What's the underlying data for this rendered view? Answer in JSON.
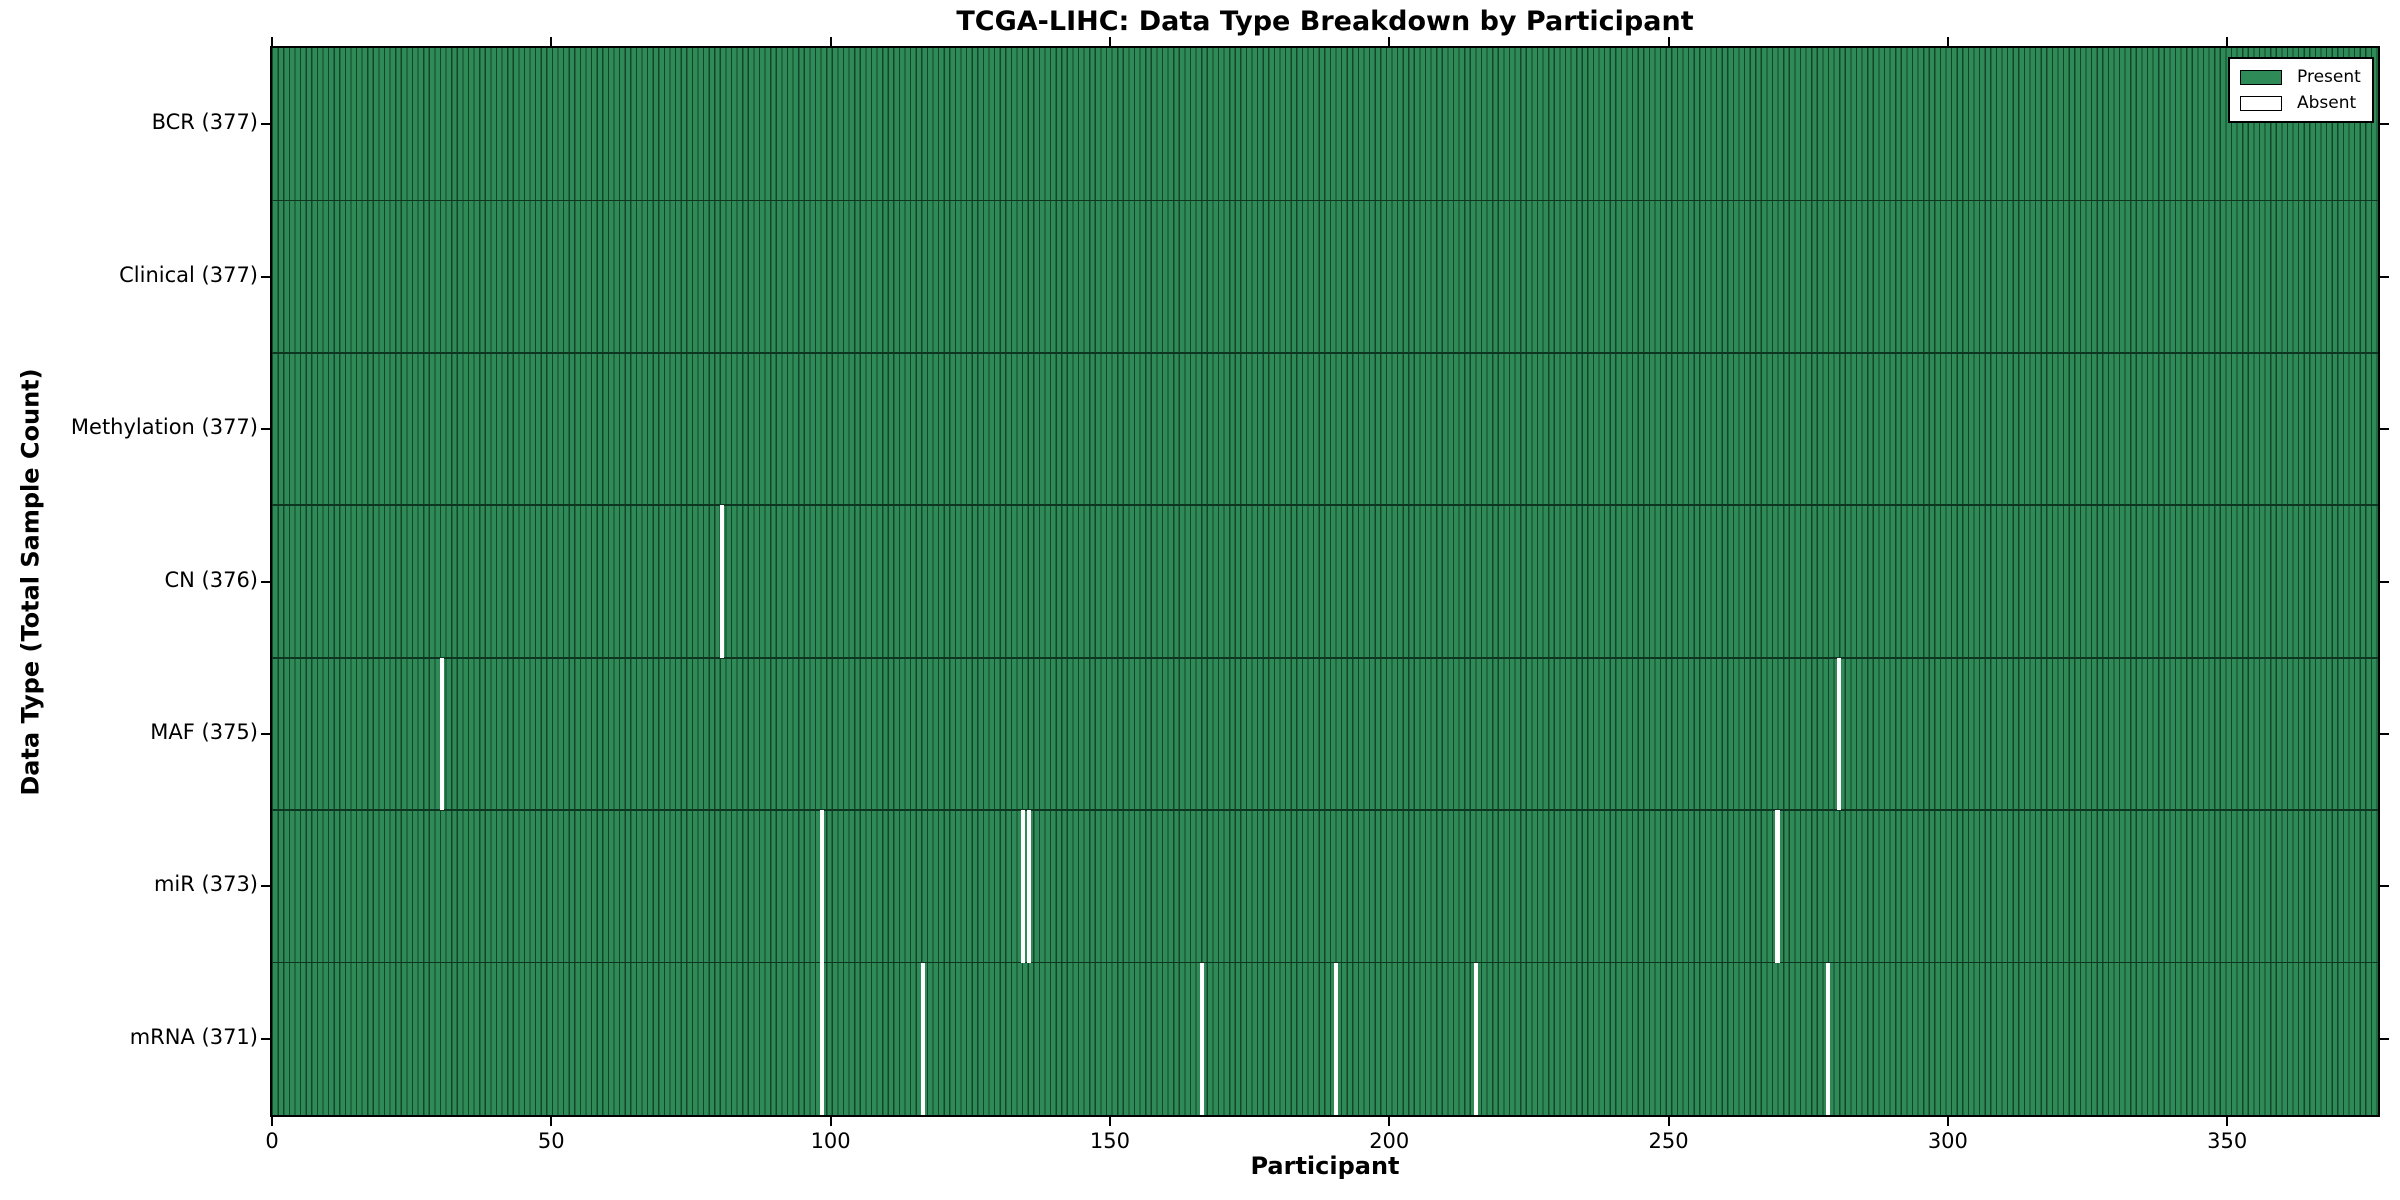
{
  "chart_data": {
    "type": "heatmap",
    "title": "TCGA-LIHC: Data Type Breakdown by Participant",
    "xlabel": "Participant",
    "ylabel": "Data Type (Total Sample Count)",
    "x_ticks": [
      0,
      50,
      100,
      150,
      200,
      250,
      300,
      350
    ],
    "x_range": [
      0,
      377
    ],
    "n_participants": 377,
    "grid": false,
    "legend_position": "upper right",
    "legend": [
      {
        "label": "Present",
        "color": "#2e8b57"
      },
      {
        "label": "Absent",
        "color": "#ffffff"
      }
    ],
    "colors": {
      "present_fill": "#2e8b57",
      "bar_edge": "#14452a",
      "absent_fill": "#ffffff",
      "axis_border": "#000000"
    },
    "rows": [
      {
        "label": "BCR (377)",
        "data_type": "BCR",
        "present_count": 377,
        "absent_participants": []
      },
      {
        "label": "Clinical (377)",
        "data_type": "Clinical",
        "present_count": 377,
        "absent_participants": []
      },
      {
        "label": "Methylation (377)",
        "data_type": "Methylation",
        "present_count": 377,
        "absent_participants": []
      },
      {
        "label": "CN (376)",
        "data_type": "CN",
        "present_count": 376,
        "absent_participants": [
          80
        ]
      },
      {
        "label": "MAF (375)",
        "data_type": "MAF",
        "present_count": 375,
        "absent_participants": [
          30,
          280
        ]
      },
      {
        "label": "miR (373)",
        "data_type": "miR",
        "present_count": 373,
        "absent_participants": [
          98,
          134,
          135,
          269
        ]
      },
      {
        "label": "mRNA (371)",
        "data_type": "mRNA",
        "present_count": 371,
        "absent_participants": [
          98,
          116,
          166,
          190,
          215,
          278
        ]
      }
    ]
  }
}
